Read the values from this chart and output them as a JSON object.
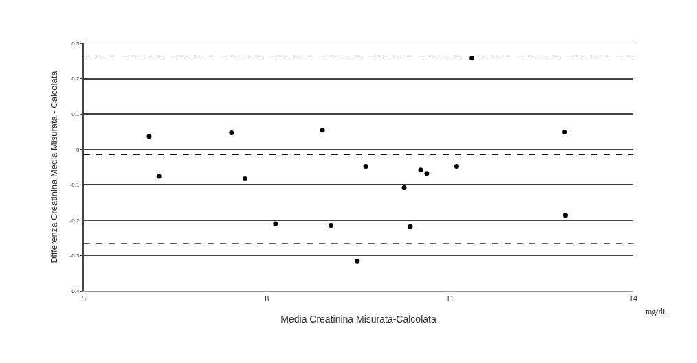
{
  "chart_data": {
    "type": "scatter",
    "xlabel": "Media Creatinina Misurata-Calcolata",
    "ylabel": "Differenza Creatinina Media Misurata - Calcolata",
    "x": [
      6.07,
      6.23,
      7.42,
      7.64,
      8.14,
      8.91,
      9.05,
      9.48,
      9.62,
      10.25,
      10.35,
      10.52,
      10.62,
      11.11,
      11.36,
      12.88,
      12.89
    ],
    "series": [
      {
        "color": "#000000",
        "values": [
          0.037,
          -0.076,
          0.047,
          -0.083,
          -0.21,
          0.054,
          -0.215,
          -0.315,
          -0.048,
          -0.108,
          -0.218,
          -0.058,
          -0.068,
          -0.048,
          0.258,
          0.049,
          -0.186
        ]
      }
    ],
    "xlim": [
      5,
      14
    ],
    "xticks": [
      5,
      8,
      11,
      14
    ],
    "ylim": [
      -0.4,
      0.3
    ],
    "yticks": [
      -0.4,
      -0.3,
      -0.2,
      -0.1,
      0,
      0.1,
      0.2,
      0.3
    ],
    "grid": "y",
    "marker": "circle",
    "ref_lines": [
      {
        "axis": "y",
        "value": 0.264,
        "line_style": "dashed",
        "color": "#000000"
      },
      {
        "axis": "y",
        "value": -0.015,
        "line_style": "dashed",
        "color": "#000000"
      },
      {
        "axis": "y",
        "value": -0.266,
        "line_style": "dashed",
        "color": "#000000"
      }
    ],
    "annotations": [
      "mg/dL"
    ]
  }
}
